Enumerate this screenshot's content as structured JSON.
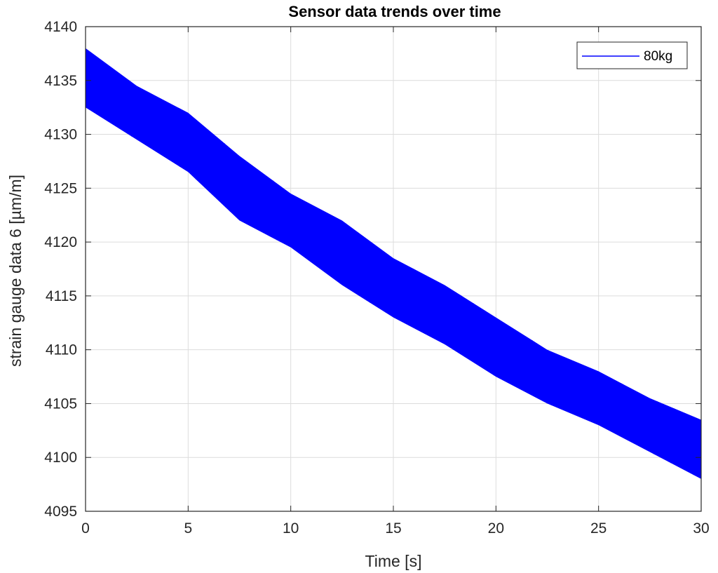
{
  "chart_data": {
    "type": "line",
    "title": "Sensor data trends over time",
    "xlabel": "Time [s]",
    "ylabel": "strain gauge data 6 [µm/m]",
    "xlim": [
      0,
      30
    ],
    "ylim": [
      4095,
      4140
    ],
    "x_ticks": [
      0,
      5,
      10,
      15,
      20,
      25,
      30
    ],
    "x_tick_labels": [
      "0",
      "5",
      "10",
      "15",
      "20",
      "25",
      "30"
    ],
    "y_ticks": [
      4095,
      4100,
      4105,
      4110,
      4115,
      4120,
      4125,
      4130,
      4135,
      4140
    ],
    "y_tick_labels": [
      "4095",
      "4100",
      "4105",
      "4110",
      "4115",
      "4120",
      "4125",
      "4130",
      "4135",
      "4140"
    ],
    "grid": true,
    "legend_position": "top-right",
    "colors": {
      "series": "#0000ff",
      "grid": "#dcdcdc",
      "axis": "#262626"
    },
    "series": [
      {
        "name": "80kg",
        "color": "#0000ff",
        "x": [
          0,
          2.5,
          5,
          7.5,
          10,
          12.5,
          15,
          17.5,
          20,
          22.5,
          25,
          27.5,
          30
        ],
        "upper": [
          4138,
          4134.5,
          4132,
          4128,
          4124.5,
          4122,
          4118.5,
          4116,
          4113,
          4110,
          4108,
          4105.5,
          4103.5
        ],
        "lower": [
          4132.5,
          4129.5,
          4126.5,
          4122,
          4119.5,
          4116,
          4113,
          4110.5,
          4107.5,
          4105,
          4103,
          4100.5,
          4098
        ]
      }
    ]
  }
}
